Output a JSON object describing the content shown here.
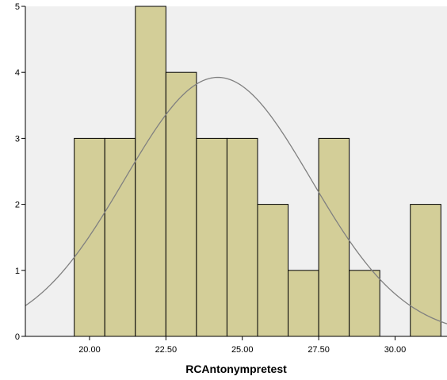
{
  "chart_data": {
    "type": "bar",
    "subtype": "histogram",
    "title": "",
    "xlabel": "RCAntonympretest",
    "ylabel": "",
    "bins": [
      {
        "start": 19.5,
        "end": 20.5,
        "count": 3
      },
      {
        "start": 20.5,
        "end": 21.5,
        "count": 3
      },
      {
        "start": 21.5,
        "end": 22.5,
        "count": 5
      },
      {
        "start": 22.5,
        "end": 23.5,
        "count": 4
      },
      {
        "start": 23.5,
        "end": 24.5,
        "count": 3
      },
      {
        "start": 24.5,
        "end": 25.5,
        "count": 3
      },
      {
        "start": 25.5,
        "end": 26.5,
        "count": 2
      },
      {
        "start": 26.5,
        "end": 27.5,
        "count": 1
      },
      {
        "start": 27.5,
        "end": 28.5,
        "count": 3
      },
      {
        "start": 28.5,
        "end": 29.5,
        "count": 1
      },
      {
        "start": 30.5,
        "end": 31.5,
        "count": 2
      }
    ],
    "x_ticks": [
      {
        "value": 20,
        "label": "20.00"
      },
      {
        "value": 22.5,
        "label": "22.50"
      },
      {
        "value": 25,
        "label": "25.00"
      },
      {
        "value": 27.5,
        "label": "27.50"
      },
      {
        "value": 30,
        "label": "30.00"
      }
    ],
    "y_ticks": [
      {
        "value": 0,
        "label": "0"
      },
      {
        "value": 1,
        "label": "1"
      },
      {
        "value": 2,
        "label": "2"
      },
      {
        "value": 3,
        "label": "3"
      },
      {
        "value": 4,
        "label": "4"
      },
      {
        "value": 5,
        "label": "5"
      }
    ],
    "xlim": [
      17.9,
      31.7
    ],
    "ylim": [
      0,
      5
    ],
    "normal_curve": {
      "mean": 24.2,
      "std": 3.05,
      "n": 30,
      "bin_width": 1
    },
    "grid": false,
    "colors": {
      "bar_fill": "#d3ce98",
      "bar_stroke": "#000000",
      "plot_background": "#f0f0f0",
      "curve": "#808080"
    }
  }
}
